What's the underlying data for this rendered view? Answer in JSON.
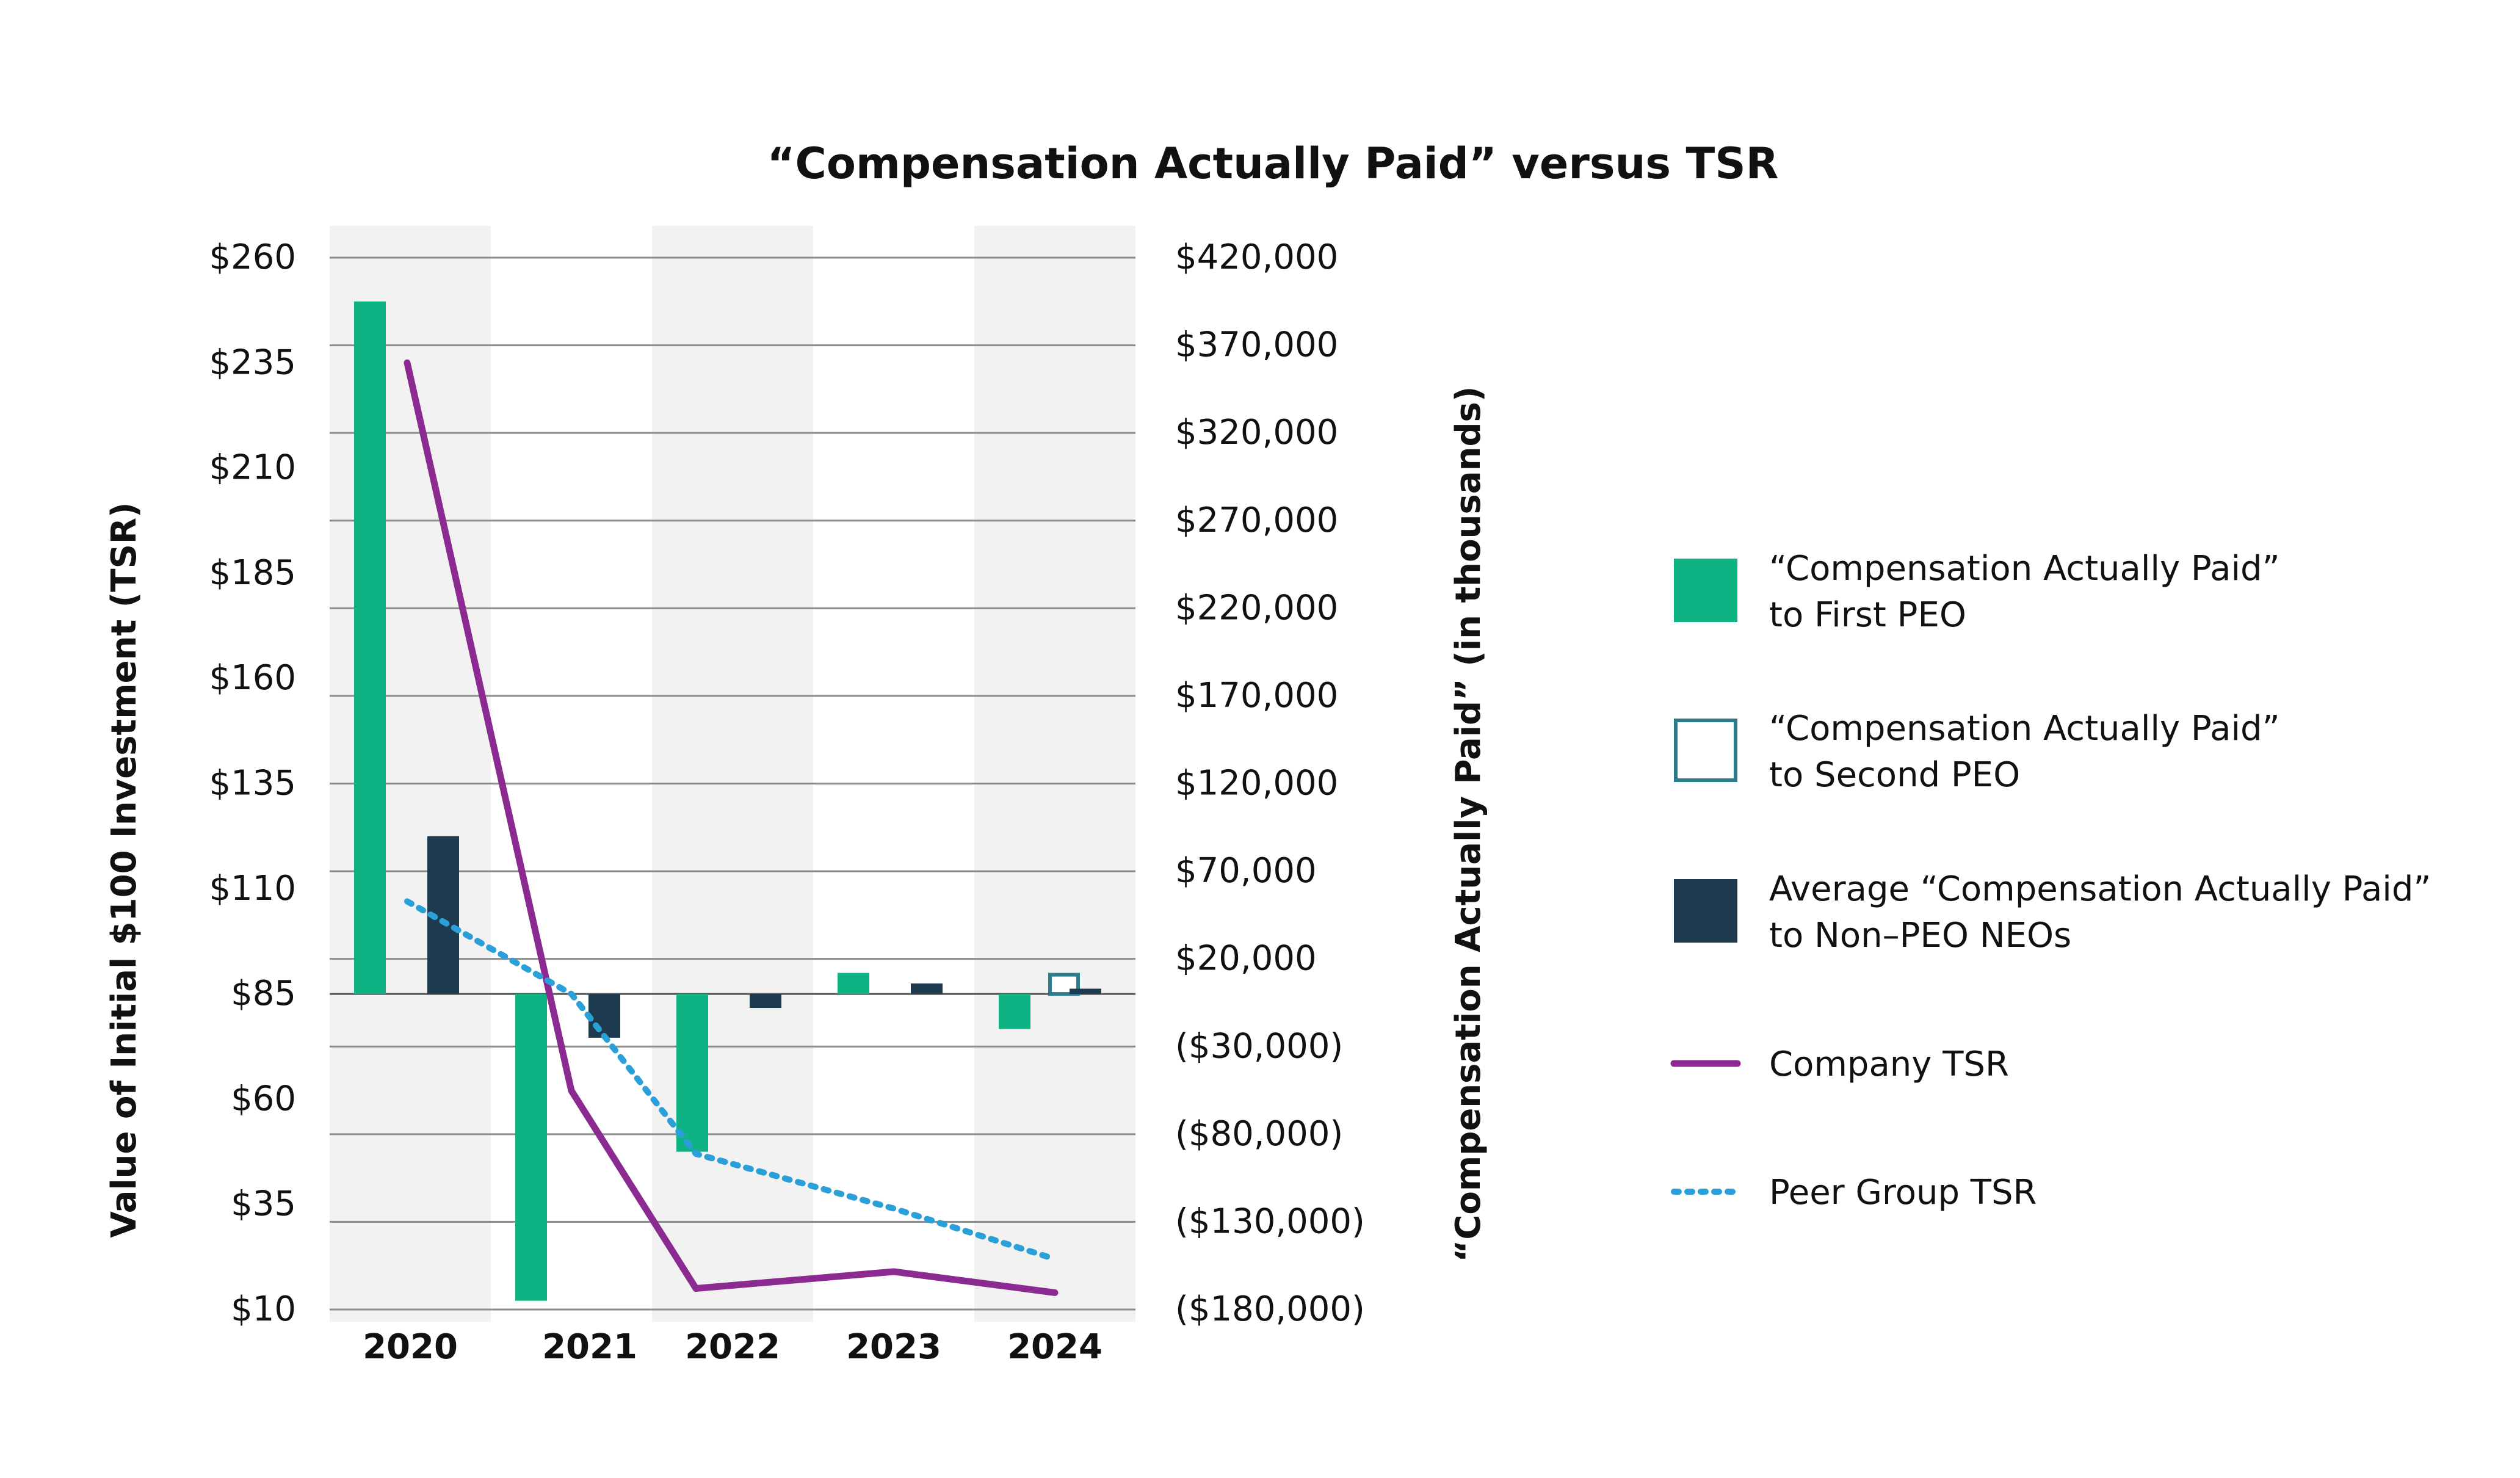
{
  "chart_data": {
    "type": "bar",
    "title": "“Compensation Actually Paid” versus TSR",
    "categories": [
      "2020",
      "2021",
      "2022",
      "2023",
      "2024"
    ],
    "y_left": {
      "label": "Value of Initial $100 Investment (TSR)",
      "ticks": [
        "$260",
        "$235",
        "$210",
        "$185",
        "$160",
        "$135",
        "$110",
        "$85",
        "$60",
        "$35",
        "$10"
      ],
      "range": [
        10,
        260
      ]
    },
    "y_right": {
      "label": "“Compensation Actually Paid” (in thousands)",
      "ticks": [
        "$420,000",
        "$370,000",
        "$320,000",
        "$270,000",
        "$220,000",
        "$170,000",
        "$120,000",
        "$70,000",
        "$20,000",
        "($30,000)",
        "($80,000)",
        "($130,000)",
        "($180,000)"
      ],
      "range": [
        -180000,
        420000
      ]
    },
    "bar_series": [
      {
        "name": "“Compensation Actually Paid” to First PEO",
        "color": "#0FB282",
        "style": "filled",
        "values": [
          395000,
          -175000,
          -90000,
          12000,
          -20000
        ]
      },
      {
        "name": "“Compensation Actually Paid” to Second PEO",
        "color": "#2E7B8C",
        "style": "outline",
        "values": [
          null,
          null,
          null,
          null,
          12000
        ]
      },
      {
        "name": "Average “Compensation Actually Paid” to Non–PEO NEOs",
        "color": "#1E3A4F",
        "style": "filled",
        "values": [
          90000,
          -25000,
          -8000,
          6000,
          3000
        ]
      }
    ],
    "line_series": [
      {
        "name": "Company TSR",
        "color": "#8B2A91",
        "style": "solid",
        "values": [
          235,
          62,
          15,
          19,
          14
        ]
      },
      {
        "name": "Peer Group TSR",
        "color": "#2A9FD8",
        "style": "dotted",
        "values": [
          107,
          85,
          47,
          34,
          22
        ]
      }
    ],
    "legend_position": "right",
    "grid": true
  },
  "legend": [
    {
      "line1": "“Compensation Actually Paid”",
      "line2": "to First PEO",
      "swatch": "filled-box",
      "color": "#0FB282"
    },
    {
      "line1": "“Compensation Actually Paid”",
      "line2": "to Second PEO",
      "swatch": "outline-box",
      "color": "#2E7B8C"
    },
    {
      "line1": "Average “Compensation Actually Paid”",
      "line2": "to Non–PEO NEOs",
      "swatch": "filled-box",
      "color": "#1E3A4F"
    },
    {
      "line1": "Company TSR",
      "line2": "",
      "swatch": "solid-line",
      "color": "#8B2A91"
    },
    {
      "line1": "Peer Group TSR",
      "line2": "",
      "swatch": "dotted-line",
      "color": "#2A9FD8"
    }
  ],
  "colors": {
    "band": "#F2F2F2",
    "grid": "#8C8C8C"
  }
}
